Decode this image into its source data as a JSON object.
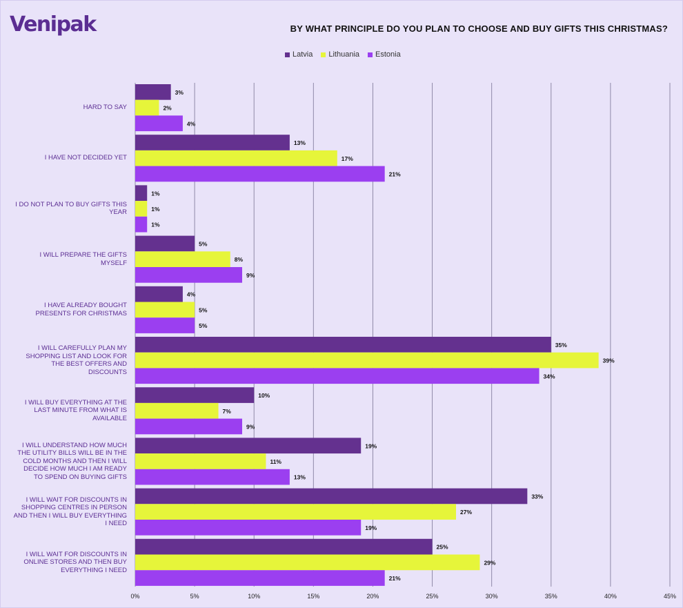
{
  "brand": {
    "logo_text": "Venipak"
  },
  "chart_data": {
    "type": "bar",
    "orientation": "horizontal",
    "title": "BY WHAT PRINCIPLE DO YOU PLAN TO CHOOSE AND BUY GIFTS THIS CHRISTMAS?",
    "legend_position": "top",
    "grid": true,
    "xlim": [
      0,
      45
    ],
    "x_ticks": [
      "0%",
      "5%",
      "10%",
      "15%",
      "20%",
      "25%",
      "30%",
      "35%",
      "40%",
      "45%"
    ],
    "categories": [
      "HARD TO SAY",
      "I HAVE NOT DECIDED YET",
      "I DO NOT PLAN TO BUY GIFTS THIS YEAR",
      "I WILL PREPARE THE GIFTS MYSELF",
      "I HAVE ALREADY BOUGHT PRESENTS FOR CHRISTMAS",
      "I WILL CAREFULLY PLAN MY SHOPPING LIST AND LOOK FOR THE BEST OFFERS AND DISCOUNTS",
      "I WILL BUY EVERYTHING AT THE LAST MINUTE FROM WHAT IS AVAILABLE",
      "I WILL UNDERSTAND HOW MUCH THE UTILITY BILLS WILL BE IN THE COLD MONTHS AND THEN I WILL DECIDE HOW MUCH I AM READY TO SPEND ON BUYING GIFTS",
      "I WILL WAIT FOR DISCOUNTS IN SHOPPING CENTRES IN PERSON AND THEN I WILL BUY EVERYTHING I NEED",
      "I WILL WAIT FOR DISCOUNTS IN ONLINE STORES AND THEN BUY EVERYTHING I NEED"
    ],
    "series": [
      {
        "name": "Latvia",
        "color": "#64318f",
        "values": [
          3,
          13,
          1,
          5,
          4,
          35,
          10,
          19,
          33,
          25
        ]
      },
      {
        "name": "Lithuania",
        "color": "#e6f53a",
        "values": [
          2,
          17,
          1,
          8,
          5,
          39,
          7,
          11,
          27,
          29
        ]
      },
      {
        "name": "Estonia",
        "color": "#9b3ff0",
        "values": [
          4,
          21,
          1,
          9,
          5,
          34,
          9,
          13,
          19,
          21
        ]
      }
    ],
    "data_labels": [
      [
        "3%",
        "13%",
        "1%",
        "5%",
        "4%",
        "35%",
        "10%",
        "19%",
        "33%",
        "25%"
      ],
      [
        "2%",
        "17%",
        "1%",
        "8%",
        "5%",
        "39%",
        "7%",
        "11%",
        "27%",
        "29%"
      ],
      [
        "4%",
        "21%",
        "1%",
        "9%",
        "5%",
        "34%",
        "9%",
        "13%",
        "19%",
        "21%"
      ]
    ]
  }
}
